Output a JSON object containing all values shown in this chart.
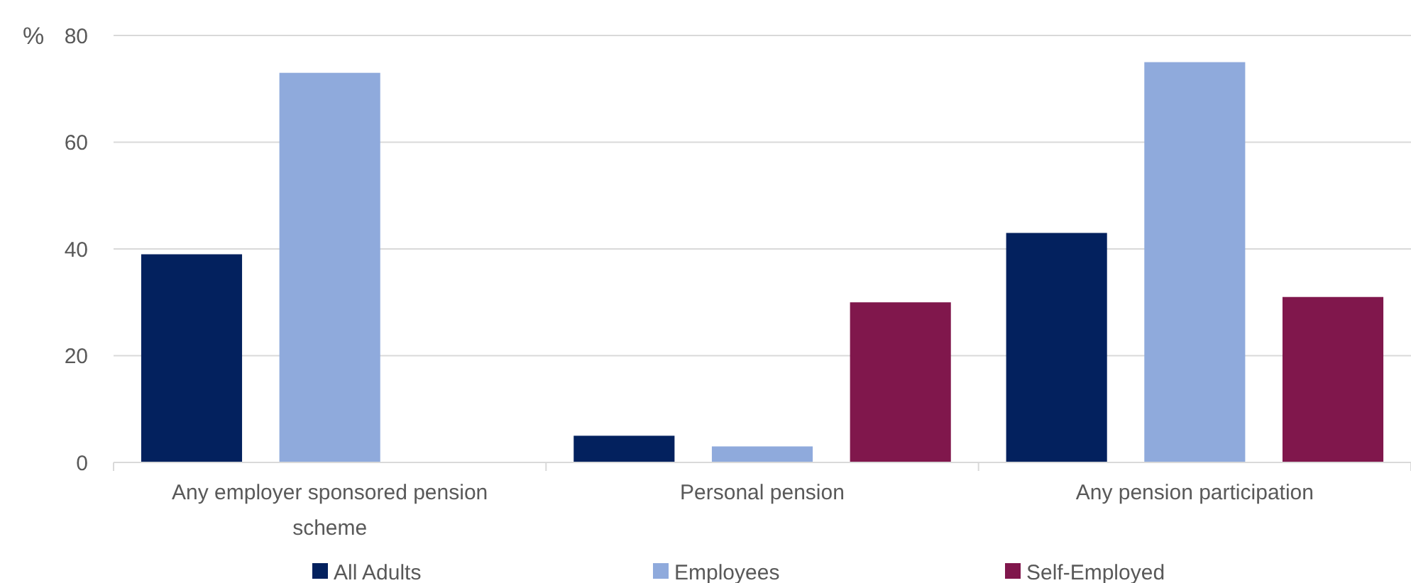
{
  "chart_data": {
    "type": "bar",
    "ylabel": "%",
    "categories": [
      "Any employer sponsored pension scheme",
      "Personal pension",
      "Any pension participation"
    ],
    "series": [
      {
        "name": "All Adults",
        "color": "#03215e",
        "values": [
          39,
          5,
          43
        ]
      },
      {
        "name": "Employees",
        "color": "#8faadc",
        "values": [
          73,
          3,
          75
        ]
      },
      {
        "name": "Self-Employed",
        "color": "#80174c",
        "values": [
          null,
          30,
          31
        ]
      }
    ],
    "ylim": [
      0,
      80
    ],
    "yticks": [
      0,
      20,
      40,
      60,
      80
    ],
    "grid": "y",
    "legend": "bottom"
  }
}
